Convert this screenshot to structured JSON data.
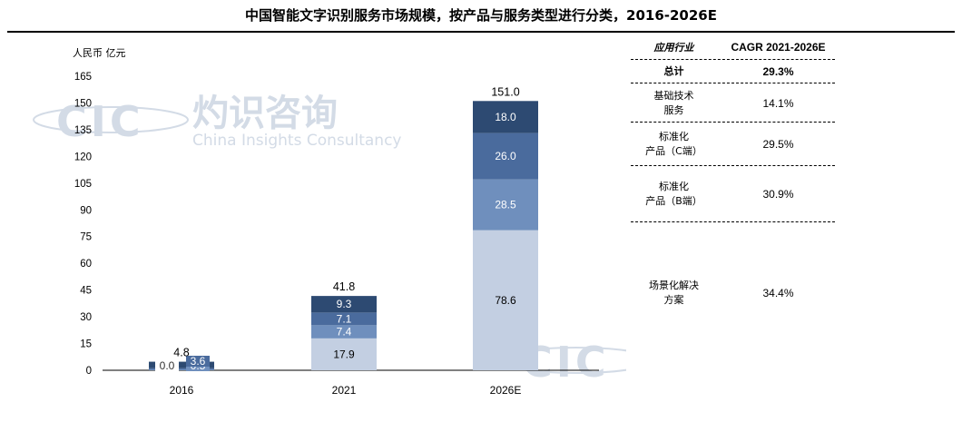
{
  "title": "中国智能文字识别服务市场规模，按产品与服务类型进行分类，2016-2026E",
  "watermark": {
    "logo": "CIC",
    "cn": "灼识咨询",
    "en": "China Insights Consultancy"
  },
  "colors": {
    "seg1": "#c3cfe2",
    "seg2": "#6f8fbd",
    "seg3": "#4a6b9d",
    "seg4": "#2d4a72",
    "watermark": "#d3dbe6"
  },
  "chart_data": {
    "type": "bar",
    "stacked": true,
    "ylabel": "人民币 亿元",
    "ylim": [
      0,
      165
    ],
    "yticks": [
      0,
      15,
      30,
      45,
      60,
      75,
      90,
      105,
      120,
      135,
      150,
      165
    ],
    "categories": [
      "2016",
      "2021",
      "2026E"
    ],
    "series": [
      {
        "values": [
          0.0,
          17.9,
          78.6
        ]
      },
      {
        "values": [
          0.5,
          7.4,
          28.5
        ]
      },
      {
        "values": [
          0.7,
          7.1,
          26.0
        ]
      },
      {
        "values": [
          3.6,
          9.3,
          18.0
        ]
      }
    ],
    "totals": [
      "4.8",
      "41.8",
      "151.0"
    ],
    "segment_labels": [
      [
        "0.0",
        "17.9",
        "78.6"
      ],
      [
        "0.5",
        "7.4",
        "28.5"
      ],
      [
        "",
        "7.1",
        "26.0"
      ],
      [
        "3.6",
        "9.3",
        "18.0"
      ]
    ]
  },
  "table": {
    "header": [
      "应用行业",
      "CAGR 2021-2026E"
    ],
    "rows": [
      {
        "label": [
          "总计"
        ],
        "value": "29.3%"
      },
      {
        "label": [
          "基础技术",
          "服务"
        ],
        "value": "14.1%"
      },
      {
        "label": [
          "标准化",
          "产品（C端）"
        ],
        "value": "29.5%"
      },
      {
        "label": [
          "标准化",
          "产品（B端）"
        ],
        "value": "30.9%"
      },
      {
        "label": [
          "场景化解决",
          "方案"
        ],
        "value": "34.4%"
      }
    ]
  }
}
